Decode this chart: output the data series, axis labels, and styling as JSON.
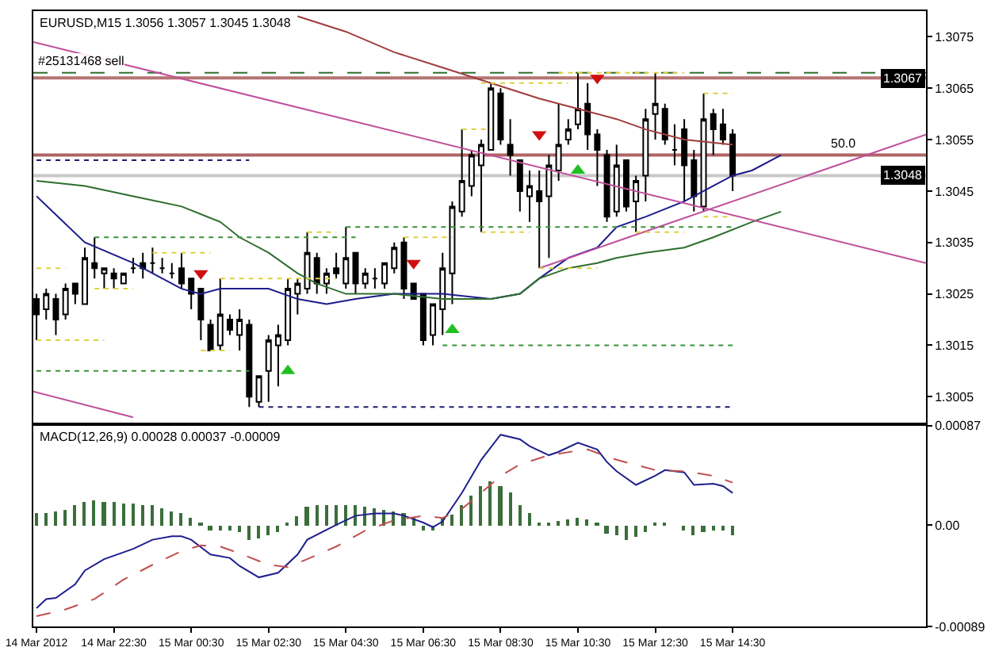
{
  "chart_data": [
    {
      "type": "candlestick",
      "title": "EURUSD,M15 1.3056 1.3057 1.3045 1.3048",
      "color": "#000000",
      "x": [
        "2012-03-14T20:30",
        "2012-03-14T20:45",
        "2012-03-14T21:00",
        "2012-03-14T21:15",
        "2012-03-14T21:30",
        "2012-03-14T21:45",
        "2012-03-14T22:00",
        "2012-03-14T22:15",
        "2012-03-14T22:30",
        "2012-03-14T22:45",
        "2012-03-14T23:00",
        "2012-03-14T23:15",
        "2012-03-14T23:30",
        "2012-03-14T23:45",
        "2012-03-15T00:00",
        "2012-03-15T00:15",
        "2012-03-15T00:30",
        "2012-03-15T00:45",
        "2012-03-15T01:00",
        "2012-03-15T01:15",
        "2012-03-15T01:30",
        "2012-03-15T01:45",
        "2012-03-15T02:00",
        "2012-03-15T02:15",
        "2012-03-15T02:30",
        "2012-03-15T02:45",
        "2012-03-15T03:00",
        "2012-03-15T03:15",
        "2012-03-15T03:30",
        "2012-03-15T03:45",
        "2012-03-15T04:00",
        "2012-03-15T04:15",
        "2012-03-15T04:30",
        "2012-03-15T04:45",
        "2012-03-15T05:00",
        "2012-03-15T05:15",
        "2012-03-15T05:30",
        "2012-03-15T05:45",
        "2012-03-15T06:00",
        "2012-03-15T06:15",
        "2012-03-15T06:30",
        "2012-03-15T06:45",
        "2012-03-15T07:00",
        "2012-03-15T07:15",
        "2012-03-15T07:30",
        "2012-03-15T07:45",
        "2012-03-15T08:00",
        "2012-03-15T08:15",
        "2012-03-15T08:30",
        "2012-03-15T08:45",
        "2012-03-15T09:00",
        "2012-03-15T09:15",
        "2012-03-15T09:30",
        "2012-03-15T09:45",
        "2012-03-15T10:00",
        "2012-03-15T10:15",
        "2012-03-15T10:30",
        "2012-03-15T10:45",
        "2012-03-15T11:00",
        "2012-03-15T11:15",
        "2012-03-15T11:30",
        "2012-03-15T11:45",
        "2012-03-15T12:00",
        "2012-03-15T12:15",
        "2012-03-15T12:30",
        "2012-03-15T12:45",
        "2012-03-15T13:00",
        "2012-03-15T13:15",
        "2012-03-15T13:30",
        "2012-03-15T13:45",
        "2012-03-15T14:00",
        "2012-03-15T14:15",
        "2012-03-15T14:30"
      ],
      "ohlc": [
        [
          1.3024,
          1.3025,
          1.3016,
          1.3021
        ],
        [
          1.3022,
          1.3026,
          1.302,
          1.3025
        ],
        [
          1.3024,
          1.3025,
          1.3017,
          1.302
        ],
        [
          1.3021,
          1.3027,
          1.302,
          1.3026
        ],
        [
          1.3027,
          1.3027,
          1.3023,
          1.3025
        ],
        [
          1.3023,
          1.3034,
          1.3023,
          1.3032
        ],
        [
          1.3031,
          1.3036,
          1.3028,
          1.303
        ],
        [
          1.3029,
          1.303,
          1.3026,
          1.303
        ],
        [
          1.3029,
          1.303,
          1.3026,
          1.3028
        ],
        [
          1.3027,
          1.3029,
          1.3027,
          1.3029
        ],
        [
          1.303,
          1.3032,
          1.3029,
          1.303
        ],
        [
          1.3031,
          1.3033,
          1.3028,
          1.303
        ],
        [
          1.3031,
          1.3034,
          1.3029,
          1.3031
        ],
        [
          1.303,
          1.3032,
          1.3029,
          1.303
        ],
        [
          1.3029,
          1.3031,
          1.3028,
          1.3029
        ],
        [
          1.303,
          1.3033,
          1.3026,
          1.3027
        ],
        [
          1.3028,
          1.3028,
          1.3022,
          1.3025
        ],
        [
          1.3026,
          1.3026,
          1.3016,
          1.302
        ],
        [
          1.3019,
          1.302,
          1.3014,
          1.3014
        ],
        [
          1.3015,
          1.3028,
          1.3014,
          1.3021
        ],
        [
          1.302,
          1.3021,
          1.3017,
          1.3018
        ],
        [
          1.3017,
          1.3022,
          1.3014,
          1.302
        ],
        [
          1.3019,
          1.302,
          1.3003,
          1.3005
        ],
        [
          1.3004,
          1.3009,
          1.3003,
          1.3009
        ],
        [
          1.301,
          1.3017,
          1.3004,
          1.3016
        ],
        [
          1.3015,
          1.3019,
          1.3007,
          1.3017
        ],
        [
          1.3016,
          1.3028,
          1.3015,
          1.3026
        ],
        [
          1.3025,
          1.3028,
          1.3021,
          1.3027
        ],
        [
          1.3026,
          1.3037,
          1.3025,
          1.3033
        ],
        [
          1.3032,
          1.3033,
          1.3025,
          1.3027
        ],
        [
          1.3027,
          1.303,
          1.3025,
          1.3029
        ],
        [
          1.303,
          1.3033,
          1.3028,
          1.3029
        ],
        [
          1.3027,
          1.3038,
          1.3026,
          1.3032
        ],
        [
          1.3033,
          1.3033,
          1.3025,
          1.3027
        ],
        [
          1.3027,
          1.303,
          1.3026,
          1.3029
        ],
        [
          1.3028,
          1.303,
          1.3026,
          1.3028
        ],
        [
          1.3027,
          1.3031,
          1.3026,
          1.3031
        ],
        [
          1.303,
          1.3035,
          1.3029,
          1.3034
        ],
        [
          1.3035,
          1.3036,
          1.3024,
          1.3026
        ],
        [
          1.3027,
          1.3027,
          1.3024,
          1.3024
        ],
        [
          1.3025,
          1.3025,
          1.3015,
          1.3016
        ],
        [
          1.3017,
          1.3023,
          1.3015,
          1.3023
        ],
        [
          1.3022,
          1.3033,
          1.3017,
          1.303
        ],
        [
          1.3029,
          1.3043,
          1.3023,
          1.3042
        ],
        [
          1.3041,
          1.3057,
          1.304,
          1.3047
        ],
        [
          1.3046,
          1.3053,
          1.3044,
          1.3052
        ],
        [
          1.305,
          1.3055,
          1.3037,
          1.3054
        ],
        [
          1.3053,
          1.3066,
          1.3053,
          1.3065
        ],
        [
          1.3064,
          1.3065,
          1.3054,
          1.3055
        ],
        [
          1.3054,
          1.3059,
          1.3048,
          1.3052
        ],
        [
          1.3051,
          1.3051,
          1.3041,
          1.3045
        ],
        [
          1.3044,
          1.3049,
          1.3039,
          1.3046
        ],
        [
          1.3045,
          1.3049,
          1.303,
          1.3043
        ],
        [
          1.3044,
          1.3052,
          1.3032,
          1.305
        ],
        [
          1.3049,
          1.3062,
          1.3047,
          1.3054
        ],
        [
          1.3055,
          1.3059,
          1.3054,
          1.3057
        ],
        [
          1.3058,
          1.3068,
          1.3057,
          1.3061
        ],
        [
          1.3062,
          1.3066,
          1.3053,
          1.3056
        ],
        [
          1.3056,
          1.3057,
          1.3046,
          1.3053
        ],
        [
          1.3052,
          1.3053,
          1.3039,
          1.304
        ],
        [
          1.3041,
          1.3054,
          1.304,
          1.305
        ],
        [
          1.3051,
          1.3051,
          1.3041,
          1.3042
        ],
        [
          1.3043,
          1.3048,
          1.3037,
          1.3047
        ],
        [
          1.3048,
          1.3061,
          1.3043,
          1.3059
        ],
        [
          1.306,
          1.3068,
          1.3055,
          1.3062
        ],
        [
          1.3061,
          1.3062,
          1.3054,
          1.3055
        ],
        [
          1.3053,
          1.3058,
          1.305,
          1.3053
        ],
        [
          1.3057,
          1.3059,
          1.3043,
          1.305
        ],
        [
          1.3051,
          1.3053,
          1.3041,
          1.3044
        ],
        [
          1.3042,
          1.3064,
          1.3041,
          1.3059
        ],
        [
          1.306,
          1.3061,
          1.3052,
          1.3057
        ],
        [
          1.3058,
          1.3061,
          1.3054,
          1.3055
        ],
        [
          1.3056,
          1.3057,
          1.3045,
          1.3048
        ]
      ],
      "xlim": [
        "2012-03-14T20:25",
        "2012-03-15T19:30"
      ],
      "ylim": [
        1.3,
        1.308
      ],
      "yticks": [
        1.3005,
        1.3015,
        1.3025,
        1.3035,
        1.3045,
        1.3055,
        1.3065,
        1.3075
      ],
      "tick_labels": "y",
      "series": [
        {
          "type": "line",
          "color": "#1c1c8c",
          "x": [
            "2012-03-14T20:30",
            "2012-03-14T21:45",
            "2012-03-14T23:00",
            "2012-03-14T23:45",
            "2012-03-15T00:15",
            "2012-03-15T00:45",
            "2012-03-15T01:15",
            "2012-03-15T01:45",
            "2012-03-15T02:30",
            "2012-03-15T03:15",
            "2012-03-15T04:00",
            "2012-03-15T04:45",
            "2012-03-15T05:45",
            "2012-03-15T07:00",
            "2012-03-15T08:15",
            "2012-03-15T09:00",
            "2012-03-15T09:30",
            "2012-03-15T10:15",
            "2012-03-15T11:00",
            "2012-03-15T11:30",
            "2012-03-15T12:15",
            "2012-03-15T13:15",
            "2012-03-15T14:00",
            "2012-03-15T14:30",
            "2012-03-15T15:00",
            "2012-03-15T15:45"
          ],
          "values": [
            1.3044,
            1.3035,
            1.3031,
            1.3028,
            1.3026,
            1.3025,
            1.3026,
            1.3026,
            1.3026,
            1.3024,
            1.3023,
            1.3024,
            1.3025,
            1.3025,
            1.3024,
            1.3025,
            1.3028,
            1.3032,
            1.3034,
            1.3038,
            1.304,
            1.3043,
            1.3046,
            1.3048,
            1.3049,
            1.3052
          ]
        },
        {
          "type": "line",
          "color": "#2e6e2e",
          "x": [
            "2012-03-14T20:30",
            "2012-03-14T21:45",
            "2012-03-14T23:00",
            "2012-03-15T00:15",
            "2012-03-15T01:15",
            "2012-03-15T01:45",
            "2012-03-15T02:30",
            "2012-03-15T03:15",
            "2012-03-15T03:45",
            "2012-03-15T04:30",
            "2012-03-15T05:45",
            "2012-03-15T07:00",
            "2012-03-15T08:15",
            "2012-03-15T09:00",
            "2012-03-15T09:30",
            "2012-03-15T10:15",
            "2012-03-15T11:00",
            "2012-03-15T11:30",
            "2012-03-15T12:15",
            "2012-03-15T13:15",
            "2012-03-15T14:00",
            "2012-03-15T15:00",
            "2012-03-15T15:45"
          ],
          "values": [
            1.3047,
            1.3046,
            1.3044,
            1.3042,
            1.3039,
            1.3036,
            1.3033,
            1.3029,
            1.3027,
            1.3025,
            1.3025,
            1.3024,
            1.3024,
            1.3025,
            1.3028,
            1.303,
            1.3031,
            1.3032,
            1.3033,
            1.3034,
            1.3036,
            1.3039,
            1.3041
          ]
        },
        {
          "type": "line",
          "color": "#a03c3c",
          "x": [
            "2012-03-15T03:15",
            "2012-03-15T04:30",
            "2012-03-15T05:45",
            "2012-03-15T07:00",
            "2012-03-15T08:15",
            "2012-03-15T09:30",
            "2012-03-15T10:30",
            "2012-03-15T11:30",
            "2012-03-15T12:15",
            "2012-03-15T13:15",
            "2012-03-15T14:30"
          ],
          "values": [
            1.3079,
            1.3076,
            1.3072,
            1.3069,
            1.3066,
            1.3063,
            1.3061,
            1.3059,
            1.3057,
            1.3055,
            1.3054
          ]
        },
        {
          "type": "line",
          "color": "#c04f9c",
          "x": [
            "2012-03-14T20:25",
            "2012-03-15T19:30"
          ],
          "values": [
            1.3074,
            1.3031
          ]
        },
        {
          "type": "line",
          "color": "#c04f9c",
          "x": [
            "2012-03-14T20:25",
            "2012-03-14T23:00"
          ],
          "values": [
            1.3006,
            1.3001
          ]
        },
        {
          "type": "line",
          "color": "#c04f9c",
          "x": [
            "2012-03-15T09:30",
            "2012-03-15T19:30"
          ],
          "values": [
            1.303,
            1.3056
          ]
        },
        {
          "type": "line",
          "color": "#1c1c70",
          "line_style": "dotted",
          "x": [
            "2012-03-14T20:30",
            "2012-03-15T02:00",
            null,
            "2012-03-15T02:15",
            "2012-03-15T14:30"
          ],
          "values": [
            1.3051,
            1.3051,
            null,
            1.3003,
            1.3003
          ]
        },
        {
          "type": "line",
          "color": "#3a913a",
          "line_style": "dotted",
          "x": [
            "2012-03-14T20:30",
            "2012-03-15T02:00",
            null,
            "2012-03-15T04:30",
            "2012-03-15T14:30"
          ],
          "values": [
            1.301,
            1.301,
            null,
            1.3038,
            1.3038
          ]
        },
        {
          "type": "line",
          "color": "#3a913a",
          "line_style": "dotted",
          "x": [
            "2012-03-14T22:00",
            "2012-03-15T04:45",
            null,
            "2012-03-15T07:00",
            "2012-03-15T14:30"
          ],
          "values": [
            1.3036,
            1.3036,
            null,
            1.3015,
            1.3015
          ]
        },
        {
          "type": "line",
          "color": "#e0d040",
          "line_style": "dotted",
          "x": [
            "2012-03-14T20:30",
            "2012-03-14T21:15",
            null,
            "2012-03-14T22:00",
            "2012-03-14T23:00",
            null,
            "2012-03-14T23:30",
            "2012-03-15T01:00",
            null,
            "2012-03-15T01:15",
            "2012-03-15T04:15",
            null,
            "2012-03-15T06:00",
            "2012-03-15T07:15",
            null,
            "2012-03-15T07:30",
            "2012-03-15T08:15",
            null,
            "2012-03-15T09:30",
            "2012-03-15T11:00",
            null,
            "2012-03-15T12:00",
            "2012-03-15T13:15",
            null,
            "2012-03-15T13:45",
            "2012-03-15T14:30"
          ],
          "values": [
            1.303,
            1.303,
            null,
            1.3026,
            1.3026,
            null,
            1.3033,
            1.3033,
            null,
            1.3028,
            1.3028,
            null,
            1.3036,
            1.3036,
            null,
            1.3057,
            1.3057,
            null,
            1.303,
            1.303,
            null,
            1.3037,
            1.3037,
            null,
            1.3064,
            1.3064
          ]
        },
        {
          "type": "line",
          "color": "#e0d040",
          "line_style": "dotted",
          "x": [
            "2012-03-14T20:30",
            "2012-03-14T22:15",
            null,
            "2012-03-15T00:45",
            "2012-03-15T01:30",
            null,
            "2012-03-15T03:30",
            "2012-03-15T04:15",
            null,
            "2012-03-15T08:00",
            "2012-03-15T09:15",
            null,
            "2012-03-15T10:00",
            "2012-03-15T13:15",
            null,
            "2012-03-15T13:45",
            "2012-03-15T14:30"
          ],
          "values": [
            1.3016,
            1.3016,
            null,
            1.3014,
            1.3014,
            null,
            1.3037,
            1.3037,
            null,
            1.3037,
            1.3037,
            null,
            1.3068,
            1.3068,
            null,
            1.304,
            1.304
          ]
        },
        {
          "type": "line",
          "color": "#e0d040",
          "line_style": "dotted",
          "x": [
            "2012-03-15T08:00",
            "2012-03-15T10:15"
          ],
          "values": [
            1.3066,
            1.3066
          ]
        },
        {
          "type": "scatter",
          "color": "#d01010",
          "marker": "triangle-down",
          "x": [
            "2012-03-15T00:45",
            "2012-03-15T06:15",
            "2012-03-15T09:30",
            "2012-03-15T11:00"
          ],
          "values": [
            1.3029,
            1.3031,
            1.3056,
            1.3067
          ]
        },
        {
          "type": "scatter",
          "color": "#20c020",
          "marker": "triangle",
          "x": [
            "2012-03-15T03:00",
            "2012-03-15T07:15",
            "2012-03-15T10:30"
          ],
          "values": [
            1.301,
            1.3018,
            1.3049
          ]
        }
      ],
      "ref_lines": [
        {
          "axis": "y",
          "value": 1.3067,
          "color": "#b67474"
        },
        {
          "axis": "y",
          "value": 1.3068,
          "color": "#2f6f2f",
          "line_style": "dashed"
        },
        {
          "axis": "y",
          "value": 1.3052,
          "color": "#b06464"
        },
        {
          "axis": "y",
          "value": 1.3048,
          "color": "#c8c8c8"
        }
      ],
      "annotations": [
        {
          "text": "#25131468 sell",
          "x": "2012-03-14T20:30",
          "y": 1.3068
        },
        {
          "text": "50.0",
          "x": "2012-03-15T17:00",
          "y": 1.3052
        },
        {
          "text": "1.3067",
          "y": 1.3067
        },
        {
          "text": "1.3048",
          "y": 1.3048
        }
      ]
    },
    {
      "type": "line",
      "title": "MACD(12,26,9) 0.00028 0.00037 -0.00009",
      "x": [
        "2012-03-14T20:30",
        "2012-03-14T20:45",
        "2012-03-14T21:00",
        "2012-03-14T21:15",
        "2012-03-14T21:30",
        "2012-03-14T21:45",
        "2012-03-14T22:00",
        "2012-03-14T22:15",
        "2012-03-14T22:30",
        "2012-03-14T22:45",
        "2012-03-14T23:00",
        "2012-03-14T23:15",
        "2012-03-14T23:30",
        "2012-03-14T23:45",
        "2012-03-15T00:00",
        "2012-03-15T00:15",
        "2012-03-15T00:30",
        "2012-03-15T00:45",
        "2012-03-15T01:00",
        "2012-03-15T01:15",
        "2012-03-15T01:30",
        "2012-03-15T01:45",
        "2012-03-15T02:00",
        "2012-03-15T02:15",
        "2012-03-15T02:30",
        "2012-03-15T02:45",
        "2012-03-15T03:00",
        "2012-03-15T03:15",
        "2012-03-15T03:30",
        "2012-03-15T03:45",
        "2012-03-15T04:00",
        "2012-03-15T04:15",
        "2012-03-15T04:30",
        "2012-03-15T04:45",
        "2012-03-15T05:00",
        "2012-03-15T05:15",
        "2012-03-15T05:30",
        "2012-03-15T05:45",
        "2012-03-15T06:00",
        "2012-03-15T06:15",
        "2012-03-15T06:30",
        "2012-03-15T06:45",
        "2012-03-15T07:00",
        "2012-03-15T07:15",
        "2012-03-15T07:30",
        "2012-03-15T07:45",
        "2012-03-15T08:00",
        "2012-03-15T08:15",
        "2012-03-15T08:30",
        "2012-03-15T08:45",
        "2012-03-15T09:00",
        "2012-03-15T09:15",
        "2012-03-15T09:30",
        "2012-03-15T09:45",
        "2012-03-15T10:00",
        "2012-03-15T10:15",
        "2012-03-15T10:30",
        "2012-03-15T10:45",
        "2012-03-15T11:00",
        "2012-03-15T11:15",
        "2012-03-15T11:30",
        "2012-03-15T11:45",
        "2012-03-15T12:00",
        "2012-03-15T12:15",
        "2012-03-15T12:30",
        "2012-03-15T12:45",
        "2012-03-15T13:00",
        "2012-03-15T13:15",
        "2012-03-15T13:30",
        "2012-03-15T13:45",
        "2012-03-15T14:00",
        "2012-03-15T14:15",
        "2012-03-15T14:30"
      ],
      "series": [
        {
          "type": "bar",
          "color": "#3b6e3b",
          "values": [
            0.0001,
            0.00011,
            0.00012,
            0.00014,
            0.00017,
            0.00021,
            0.00022,
            0.00021,
            0.0002,
            0.00019,
            0.00019,
            0.00018,
            0.00017,
            0.00015,
            0.00012,
            0.0001,
            7e-05,
            2e-05,
            -4e-05,
            -4e-05,
            -4e-05,
            -6e-05,
            -0.00013,
            -0.00012,
            -9e-05,
            -6e-05,
            1e-05,
            8e-05,
            0.00016,
            0.00017,
            0.00017,
            0.00018,
            0.00018,
            0.00017,
            0.00016,
            0.00015,
            0.00014,
            0.00012,
            0.00011,
            6e-05,
            -4e-05,
            -4e-05,
            7e-05,
            9e-05,
            0.00017,
            0.00026,
            0.00034,
            0.00038,
            0.00034,
            0.00028,
            0.00018,
            0.00011,
            2e-05,
            2e-05,
            3e-05,
            5e-05,
            7e-05,
            5e-05,
            2e-05,
            -8e-05,
            -9e-05,
            -0.00013,
            -0.0001,
            -6e-05,
            1e-05,
            1e-05,
            0,
            -5e-05,
            -9e-05,
            -6e-05,
            -4e-05,
            -4e-05,
            -9e-05
          ]
        },
        {
          "type": "line",
          "color": "#1f1f8f",
          "x": [
            "2012-03-14T20:30",
            "2012-03-14T20:45",
            "2012-03-14T21:00",
            "2012-03-14T21:30",
            "2012-03-14T21:45",
            "2012-03-14T22:15",
            "2012-03-14T23:00",
            "2012-03-14T23:30",
            "2012-03-15T00:00",
            "2012-03-15T00:15",
            "2012-03-15T00:30",
            "2012-03-15T01:00",
            "2012-03-15T01:30",
            "2012-03-15T01:45",
            "2012-03-15T02:15",
            "2012-03-15T02:45",
            "2012-03-15T03:15",
            "2012-03-15T03:30",
            "2012-03-15T04:15",
            "2012-03-15T04:45",
            "2012-03-15T05:15",
            "2012-03-15T05:45",
            "2012-03-15T06:00",
            "2012-03-15T06:30",
            "2012-03-15T06:45",
            "2012-03-15T07:00",
            "2012-03-15T07:30",
            "2012-03-15T08:00",
            "2012-03-15T08:30",
            "2012-03-15T09:00",
            "2012-03-15T09:15",
            "2012-03-15T09:45",
            "2012-03-15T10:00",
            "2012-03-15T10:30",
            "2012-03-15T11:00",
            "2012-03-15T11:15",
            "2012-03-15T11:30",
            "2012-03-15T12:00",
            "2012-03-15T12:30",
            "2012-03-15T12:45",
            "2012-03-15T13:15",
            "2012-03-15T13:30",
            "2012-03-15T14:00",
            "2012-03-15T14:15",
            "2012-03-15T14:30"
          ],
          "values": [
            -0.00073,
            -0.00065,
            -0.00064,
            -0.00052,
            -0.0004,
            -0.0003,
            -0.00021,
            -0.00013,
            -0.0001,
            -0.0001,
            -0.00013,
            -0.00026,
            -0.00029,
            -0.00036,
            -0.00046,
            -0.00042,
            -0.00026,
            -0.00013,
            0,
            8e-05,
            0.0001,
            0.0001,
            8e-05,
            2e-05,
            -2e-05,
            3e-05,
            0.00028,
            0.00057,
            0.00079,
            0.00075,
            0.00069,
            0.00061,
            0.00064,
            0.00072,
            0.00066,
            0.00055,
            0.00047,
            0.00035,
            0.00043,
            0.00048,
            0.00046,
            0.00035,
            0.00036,
            0.00034,
            0.00028
          ]
        },
        {
          "type": "line",
          "color": "#c05050",
          "line_style": "dashed",
          "x": [
            "2012-03-14T20:30",
            "2012-03-14T21:15",
            "2012-03-14T22:00",
            "2012-03-14T22:45",
            "2012-03-14T23:30",
            "2012-03-15T00:15",
            "2012-03-15T00:45",
            "2012-03-15T01:15",
            "2012-03-15T01:45",
            "2012-03-15T02:30",
            "2012-03-15T03:00",
            "2012-03-15T03:30",
            "2012-03-15T04:15",
            "2012-03-15T05:00",
            "2012-03-15T05:45",
            "2012-03-15T06:30",
            "2012-03-15T07:00",
            "2012-03-15T07:30",
            "2012-03-15T08:00",
            "2012-03-15T08:30",
            "2012-03-15T09:00",
            "2012-03-15T09:45",
            "2012-03-15T10:30",
            "2012-03-15T10:45",
            "2012-03-15T11:30",
            "2012-03-15T12:30",
            "2012-03-15T13:15",
            "2012-03-15T14:00",
            "2012-03-15T14:30"
          ],
          "values": [
            -0.0008,
            -0.00074,
            -0.00065,
            -0.00048,
            -0.00035,
            -0.00023,
            -0.00018,
            -0.00019,
            -0.00025,
            -0.00035,
            -0.00037,
            -0.0003,
            -0.00019,
            -5e-05,
            4e-05,
            8e-05,
            6e-05,
            0.00014,
            0.00028,
            0.00043,
            0.00053,
            0.00061,
            0.00065,
            0.00066,
            0.00057,
            0.00048,
            0.00047,
            0.00043,
            0.00037
          ]
        }
      ],
      "xlim": [
        "2012-03-14T20:25",
        "2012-03-15T19:30"
      ],
      "xticks": [
        {
          "value": "2012-03-14T20:30",
          "label": "14 Mar 2012"
        },
        {
          "value": "2012-03-14T22:30",
          "label": "14 Mar 22:30"
        },
        {
          "value": "2012-03-15T00:30",
          "label": "15 Mar 00:30"
        },
        {
          "value": "2012-03-15T02:30",
          "label": "15 Mar 02:30"
        },
        {
          "value": "2012-03-15T04:30",
          "label": "15 Mar 04:30"
        },
        {
          "value": "2012-03-15T06:30",
          "label": "15 Mar 06:30"
        },
        {
          "value": "2012-03-15T08:30",
          "label": "15 Mar 08:30"
        },
        {
          "value": "2012-03-15T10:30",
          "label": "15 Mar 10:30"
        },
        {
          "value": "2012-03-15T12:30",
          "label": "15 Mar 12:30"
        },
        {
          "value": "2012-03-15T14:30",
          "label": "15 Mar 14:30"
        }
      ],
      "ylim": [
        -0.00089,
        0.00087
      ],
      "yticks": [
        0.00087,
        {
          "value": 0,
          "label": "0.00"
        },
        -0.00089
      ]
    }
  ]
}
